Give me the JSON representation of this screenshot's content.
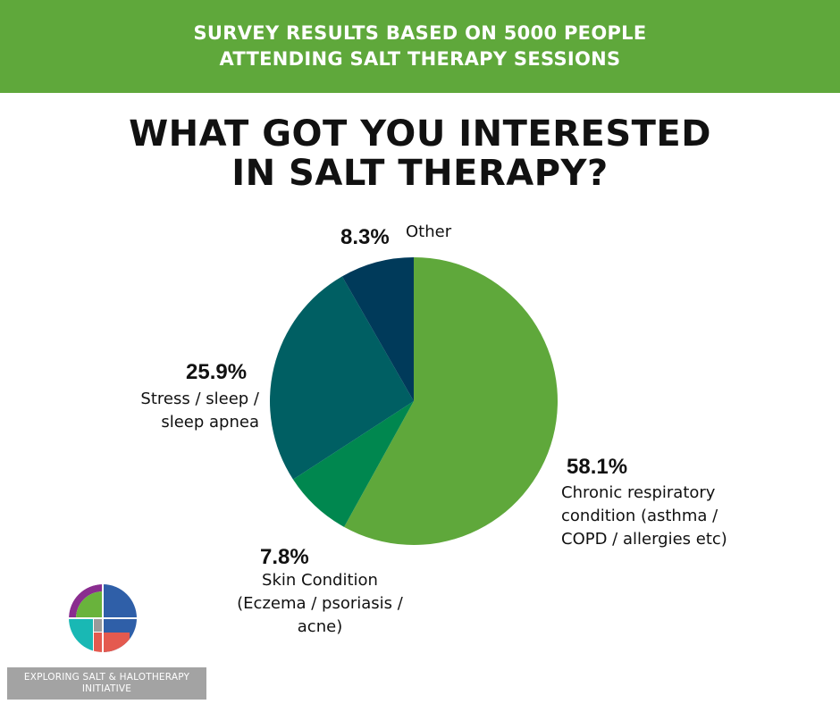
{
  "header": {
    "line1": "SURVEY RESULTS BASED ON  5000 PEOPLE",
    "line2": "ATTENDING SALT THERAPY SESSIONS"
  },
  "chart_data": {
    "type": "pie",
    "title_lines": [
      "WHAT GOT YOU INTERESTED",
      "IN SALT THERAPY?"
    ],
    "slices": [
      {
        "value": 58.1,
        "label": "58.1%",
        "desc": [
          "Chronic respiratory",
          "condition (asthma /",
          "COPD / allergies etc)"
        ],
        "color": "#5fa83b"
      },
      {
        "value": 7.8,
        "label": "7.8%",
        "desc": [
          "Skin Condition",
          "(Eczema / psoriasis /",
          "acne)"
        ],
        "color": "#00874f"
      },
      {
        "value": 25.9,
        "label": "25.9%",
        "desc": [
          "Stress / sleep /",
          "sleep apnea"
        ],
        "color": "#005f63"
      },
      {
        "value": 8.3,
        "label": "8.3%",
        "desc": [
          "Other"
        ],
        "color": "#003a5a"
      }
    ]
  },
  "footer": {
    "org_line1": "EXPLORING SALT & HALOTHERAPY",
    "org_line2": "INITIATIVE",
    "logo_icon": "salt-initiative-logo-icon"
  }
}
